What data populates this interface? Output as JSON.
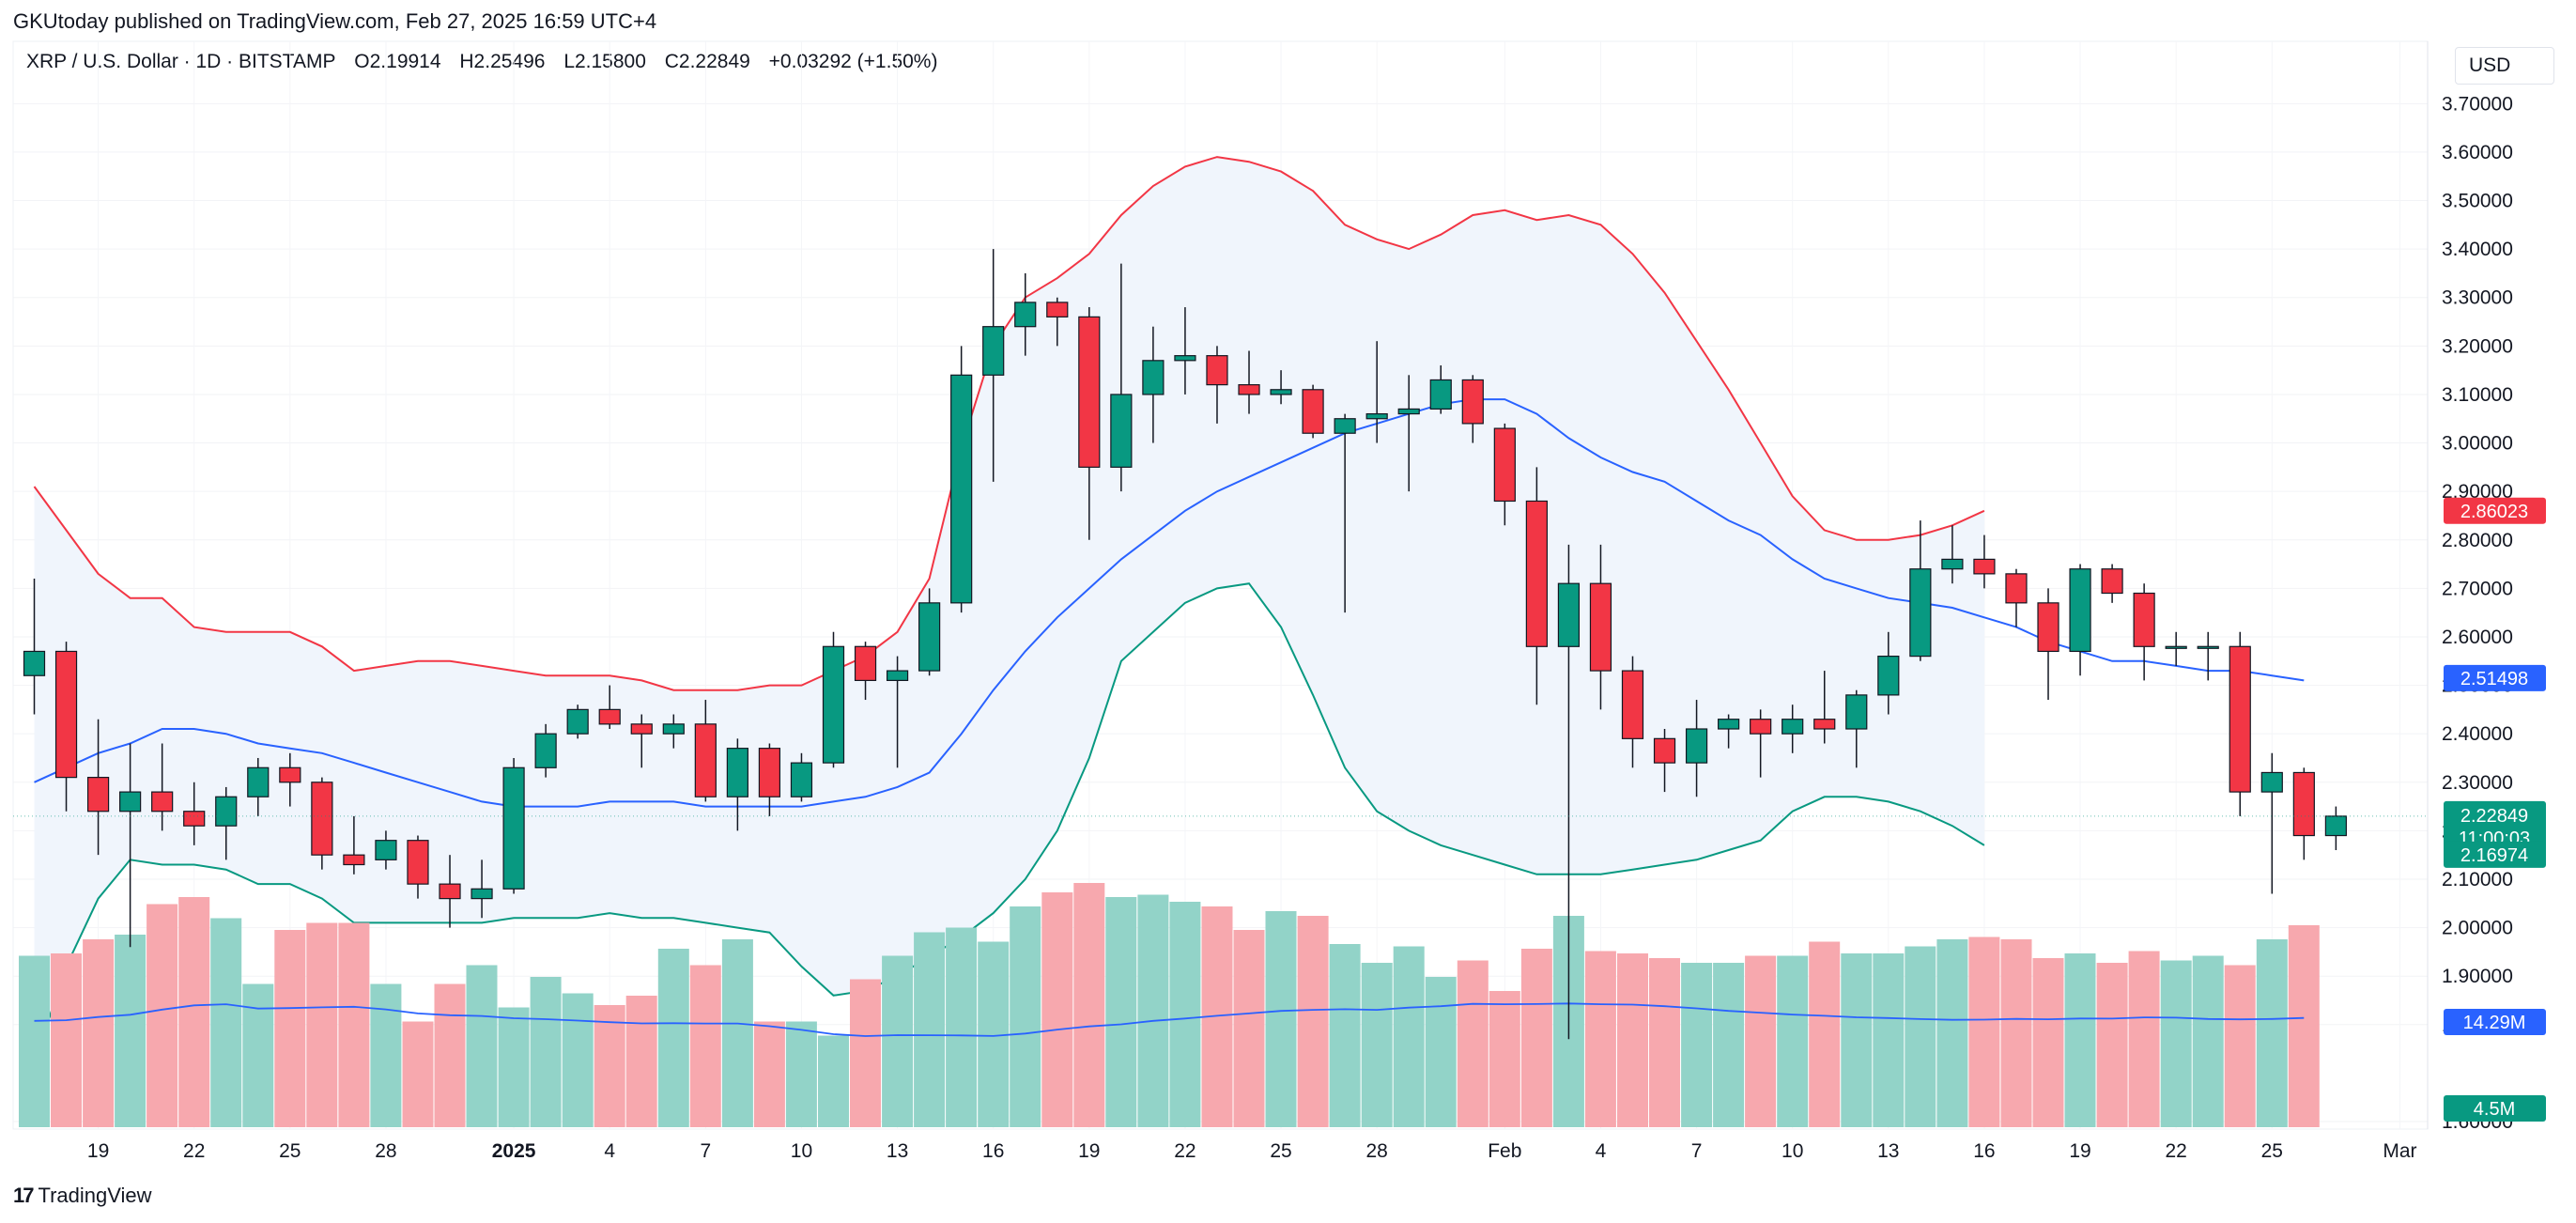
{
  "header": {
    "published": "GKUtoday published on TradingView.com, Feb 27, 2025 16:59 UTC+4",
    "symbol": "XRP / U.S. Dollar · 1D · BITSTAMP",
    "open": "O2.19914",
    "high": "H2.25496",
    "low": "L2.15800",
    "close": "C2.22849",
    "change": "+0.03292 (+1.50%)"
  },
  "currency": "USD",
  "footer": {
    "logo_text": "TradingView",
    "logo_mark": "17"
  },
  "colors": {
    "up": "#089981",
    "down": "#f23645",
    "volume_up": "#92d3c8",
    "volume_down": "#f7a8ae",
    "basis": "#2962ff",
    "upper_band": "#f23645",
    "lower_band": "#089981",
    "band_fill": "#f0f5fc"
  },
  "price_labels": {
    "upper_band": "2.86023",
    "basis": "2.51498",
    "last_price": "2.22849",
    "countdown": "11:00:03",
    "lower_band": "2.16974",
    "volume_ma": "14.29M",
    "volume": "4.5M"
  },
  "chart_data": {
    "type": "candlestick",
    "title": "XRP / U.S. Dollar · 1D · BITSTAMP",
    "ylim": [
      1.6,
      3.72
    ],
    "y_ticks": [
      "3.70000",
      "3.60000",
      "3.50000",
      "3.40000",
      "3.30000",
      "3.20000",
      "3.10000",
      "3.00000",
      "2.90000",
      "2.80000",
      "2.70000",
      "2.60000",
      "2.50000",
      "2.40000",
      "2.30000",
      "2.20000",
      "2.10000",
      "2.00000",
      "1.90000",
      "1.80000",
      "1.60000"
    ],
    "y_tick_values": [
      3.7,
      3.6,
      3.5,
      3.4,
      3.3,
      3.2,
      3.1,
      3.0,
      2.9,
      2.8,
      2.7,
      2.6,
      2.5,
      2.4,
      2.3,
      2.2,
      2.1,
      2.0,
      1.9,
      1.8,
      1.6
    ],
    "x_ticks": [
      {
        "label": "19",
        "index": 2,
        "bold": false
      },
      {
        "label": "22",
        "index": 5,
        "bold": false
      },
      {
        "label": "25",
        "index": 8,
        "bold": false
      },
      {
        "label": "28",
        "index": 11,
        "bold": false
      },
      {
        "label": "2025",
        "index": 15,
        "bold": true
      },
      {
        "label": "4",
        "index": 18,
        "bold": false
      },
      {
        "label": "7",
        "index": 21,
        "bold": false
      },
      {
        "label": "10",
        "index": 24,
        "bold": false
      },
      {
        "label": "13",
        "index": 27,
        "bold": false
      },
      {
        "label": "16",
        "index": 30,
        "bold": false
      },
      {
        "label": "19",
        "index": 33,
        "bold": false
      },
      {
        "label": "22",
        "index": 36,
        "bold": false
      },
      {
        "label": "25",
        "index": 39,
        "bold": false
      },
      {
        "label": "28",
        "index": 42,
        "bold": false
      },
      {
        "label": "Feb",
        "index": 46,
        "bold": false
      },
      {
        "label": "4",
        "index": 49,
        "bold": false
      },
      {
        "label": "7",
        "index": 52,
        "bold": false
      },
      {
        "label": "10",
        "index": 55,
        "bold": false
      },
      {
        "label": "13",
        "index": 58,
        "bold": false
      },
      {
        "label": "16",
        "index": 61,
        "bold": false
      },
      {
        "label": "19",
        "index": 64,
        "bold": false
      },
      {
        "label": "22",
        "index": 67,
        "bold": false
      },
      {
        "label": "25",
        "index": 70,
        "bold": false
      },
      {
        "label": "Mar",
        "index": 74,
        "bold": false
      }
    ],
    "candles": [
      {
        "o": 2.52,
        "h": 2.72,
        "l": 2.44,
        "c": 2.57
      },
      {
        "o": 2.57,
        "h": 2.59,
        "l": 2.24,
        "c": 2.31
      },
      {
        "o": 2.31,
        "h": 2.43,
        "l": 2.15,
        "c": 2.24
      },
      {
        "o": 2.24,
        "h": 2.38,
        "l": 1.96,
        "c": 2.28
      },
      {
        "o": 2.28,
        "h": 2.38,
        "l": 2.2,
        "c": 2.24
      },
      {
        "o": 2.24,
        "h": 2.3,
        "l": 2.17,
        "c": 2.21
      },
      {
        "o": 2.21,
        "h": 2.29,
        "l": 2.14,
        "c": 2.27
      },
      {
        "o": 2.27,
        "h": 2.35,
        "l": 2.23,
        "c": 2.33
      },
      {
        "o": 2.33,
        "h": 2.36,
        "l": 2.25,
        "c": 2.3
      },
      {
        "o": 2.3,
        "h": 2.31,
        "l": 2.12,
        "c": 2.15
      },
      {
        "o": 2.15,
        "h": 2.23,
        "l": 2.11,
        "c": 2.13
      },
      {
        "o": 2.14,
        "h": 2.2,
        "l": 2.12,
        "c": 2.18
      },
      {
        "o": 2.18,
        "h": 2.19,
        "l": 2.06,
        "c": 2.09
      },
      {
        "o": 2.09,
        "h": 2.15,
        "l": 2.0,
        "c": 2.06
      },
      {
        "o": 2.06,
        "h": 2.14,
        "l": 2.02,
        "c": 2.08
      },
      {
        "o": 2.08,
        "h": 2.35,
        "l": 2.07,
        "c": 2.33
      },
      {
        "o": 2.33,
        "h": 2.42,
        "l": 2.31,
        "c": 2.4
      },
      {
        "o": 2.4,
        "h": 2.46,
        "l": 2.39,
        "c": 2.45
      },
      {
        "o": 2.45,
        "h": 2.5,
        "l": 2.41,
        "c": 2.42
      },
      {
        "o": 2.42,
        "h": 2.44,
        "l": 2.33,
        "c": 2.4
      },
      {
        "o": 2.4,
        "h": 2.44,
        "l": 2.37,
        "c": 2.42
      },
      {
        "o": 2.42,
        "h": 2.47,
        "l": 2.26,
        "c": 2.27
      },
      {
        "o": 2.27,
        "h": 2.39,
        "l": 2.2,
        "c": 2.37
      },
      {
        "o": 2.37,
        "h": 2.38,
        "l": 2.23,
        "c": 2.27
      },
      {
        "o": 2.27,
        "h": 2.36,
        "l": 2.26,
        "c": 2.34
      },
      {
        "o": 2.34,
        "h": 2.61,
        "l": 2.33,
        "c": 2.58
      },
      {
        "o": 2.58,
        "h": 2.59,
        "l": 2.47,
        "c": 2.51
      },
      {
        "o": 2.51,
        "h": 2.56,
        "l": 2.33,
        "c": 2.53
      },
      {
        "o": 2.53,
        "h": 2.7,
        "l": 2.52,
        "c": 2.67
      },
      {
        "o": 2.67,
        "h": 3.2,
        "l": 2.65,
        "c": 3.14
      },
      {
        "o": 3.14,
        "h": 3.4,
        "l": 2.92,
        "c": 3.24
      },
      {
        "o": 3.24,
        "h": 3.35,
        "l": 3.18,
        "c": 3.29
      },
      {
        "o": 3.29,
        "h": 3.3,
        "l": 3.2,
        "c": 3.26
      },
      {
        "o": 3.26,
        "h": 3.28,
        "l": 2.8,
        "c": 2.95
      },
      {
        "o": 2.95,
        "h": 3.37,
        "l": 2.9,
        "c": 3.1
      },
      {
        "o": 3.1,
        "h": 3.24,
        "l": 3.0,
        "c": 3.17
      },
      {
        "o": 3.17,
        "h": 3.28,
        "l": 3.1,
        "c": 3.18
      },
      {
        "o": 3.18,
        "h": 3.2,
        "l": 3.04,
        "c": 3.12
      },
      {
        "o": 3.12,
        "h": 3.19,
        "l": 3.06,
        "c": 3.1
      },
      {
        "o": 3.1,
        "h": 3.15,
        "l": 3.08,
        "c": 3.11
      },
      {
        "o": 3.11,
        "h": 3.12,
        "l": 3.01,
        "c": 3.02
      },
      {
        "o": 3.02,
        "h": 3.06,
        "l": 2.65,
        "c": 3.05
      },
      {
        "o": 3.05,
        "h": 3.21,
        "l": 3.0,
        "c": 3.06
      },
      {
        "o": 3.06,
        "h": 3.14,
        "l": 2.9,
        "c": 3.07
      },
      {
        "o": 3.07,
        "h": 3.16,
        "l": 3.06,
        "c": 3.13
      },
      {
        "o": 3.13,
        "h": 3.14,
        "l": 3.0,
        "c": 3.04
      },
      {
        "o": 3.03,
        "h": 3.04,
        "l": 2.83,
        "c": 2.88
      },
      {
        "o": 2.88,
        "h": 2.95,
        "l": 2.46,
        "c": 2.58
      },
      {
        "o": 2.58,
        "h": 2.79,
        "l": 1.77,
        "c": 2.71
      },
      {
        "o": 2.71,
        "h": 2.79,
        "l": 2.45,
        "c": 2.53
      },
      {
        "o": 2.53,
        "h": 2.56,
        "l": 2.33,
        "c": 2.39
      },
      {
        "o": 2.39,
        "h": 2.41,
        "l": 2.28,
        "c": 2.34
      },
      {
        "o": 2.34,
        "h": 2.47,
        "l": 2.27,
        "c": 2.41
      },
      {
        "o": 2.41,
        "h": 2.44,
        "l": 2.37,
        "c": 2.43
      },
      {
        "o": 2.43,
        "h": 2.45,
        "l": 2.31,
        "c": 2.4
      },
      {
        "o": 2.4,
        "h": 2.46,
        "l": 2.36,
        "c": 2.43
      },
      {
        "o": 2.43,
        "h": 2.53,
        "l": 2.38,
        "c": 2.41
      },
      {
        "o": 2.41,
        "h": 2.49,
        "l": 2.33,
        "c": 2.48
      },
      {
        "o": 2.48,
        "h": 2.61,
        "l": 2.44,
        "c": 2.56
      },
      {
        "o": 2.56,
        "h": 2.84,
        "l": 2.55,
        "c": 2.74
      },
      {
        "o": 2.74,
        "h": 2.83,
        "l": 2.71,
        "c": 2.76
      },
      {
        "o": 2.76,
        "h": 2.81,
        "l": 2.7,
        "c": 2.73
      },
      {
        "o": 2.73,
        "h": 2.74,
        "l": 2.62,
        "c": 2.67
      },
      {
        "o": 2.67,
        "h": 2.7,
        "l": 2.47,
        "c": 2.57
      },
      {
        "o": 2.57,
        "h": 2.75,
        "l": 2.52,
        "c": 2.74
      },
      {
        "o": 2.74,
        "h": 2.75,
        "l": 2.67,
        "c": 2.69
      },
      {
        "o": 2.69,
        "h": 2.71,
        "l": 2.51,
        "c": 2.58
      },
      {
        "o": 2.58,
        "h": 2.61,
        "l": 2.54,
        "c": 2.58
      },
      {
        "o": 2.58,
        "h": 2.61,
        "l": 2.51,
        "c": 2.58
      },
      {
        "o": 2.58,
        "h": 2.61,
        "l": 2.23,
        "c": 2.28
      },
      {
        "o": 2.28,
        "h": 2.36,
        "l": 2.07,
        "c": 2.32
      },
      {
        "o": 2.32,
        "h": 2.33,
        "l": 2.14,
        "c": 2.19
      },
      {
        "o": 2.19,
        "h": 2.25,
        "l": 2.16,
        "c": 2.23
      }
    ],
    "bollinger": {
      "basis": [
        2.3,
        2.33,
        2.36,
        2.38,
        2.41,
        2.41,
        2.4,
        2.38,
        2.37,
        2.36,
        2.34,
        2.32,
        2.3,
        2.28,
        2.26,
        2.25,
        2.25,
        2.25,
        2.26,
        2.26,
        2.26,
        2.25,
        2.25,
        2.25,
        2.25,
        2.26,
        2.27,
        2.29,
        2.32,
        2.4,
        2.49,
        2.57,
        2.64,
        2.7,
        2.76,
        2.81,
        2.86,
        2.9,
        2.93,
        2.96,
        2.99,
        3.02,
        3.04,
        3.06,
        3.08,
        3.09,
        3.09,
        3.06,
        3.01,
        2.97,
        2.94,
        2.92,
        2.88,
        2.84,
        2.81,
        2.76,
        2.72,
        2.7,
        2.68,
        2.67,
        2.66,
        2.64,
        2.62,
        2.59,
        2.57,
        2.55,
        2.55,
        2.54,
        2.53,
        2.53,
        2.52,
        2.51
      ],
      "upper": [
        2.91,
        2.82,
        2.73,
        2.68,
        2.68,
        2.62,
        2.61,
        2.61,
        2.61,
        2.58,
        2.53,
        2.54,
        2.55,
        2.55,
        2.54,
        2.53,
        2.52,
        2.52,
        2.52,
        2.51,
        2.49,
        2.49,
        2.49,
        2.5,
        2.5,
        2.53,
        2.56,
        2.61,
        2.72,
        2.99,
        3.2,
        3.3,
        3.34,
        3.39,
        3.47,
        3.53,
        3.57,
        3.59,
        3.58,
        3.56,
        3.52,
        3.45,
        3.42,
        3.4,
        3.43,
        3.47,
        3.48,
        3.46,
        3.47,
        3.45,
        3.39,
        3.31,
        3.21,
        3.11,
        3.0,
        2.89,
        2.82,
        2.8,
        2.8,
        2.81,
        2.83,
        2.86
      ],
      "lower": [
        1.72,
        1.92,
        2.06,
        2.14,
        2.13,
        2.13,
        2.12,
        2.09,
        2.09,
        2.06,
        2.01,
        2.01,
        2.01,
        2.01,
        2.01,
        2.02,
        2.02,
        2.02,
        2.03,
        2.02,
        2.02,
        2.01,
        2.0,
        1.99,
        1.92,
        1.86,
        1.87,
        1.9,
        1.94,
        1.98,
        2.03,
        2.1,
        2.2,
        2.35,
        2.55,
        2.61,
        2.67,
        2.7,
        2.71,
        2.62,
        2.48,
        2.33,
        2.24,
        2.2,
        2.17,
        2.15,
        2.13,
        2.11,
        2.11,
        2.11,
        2.12,
        2.13,
        2.14,
        2.16,
        2.18,
        2.24,
        2.27,
        2.27,
        2.26,
        2.24,
        2.21,
        2.17
      ]
    },
    "volume": {
      "values": [
        0.73,
        0.74,
        0.8,
        0.82,
        0.95,
        0.98,
        0.89,
        0.61,
        0.84,
        0.87,
        0.87,
        0.61,
        0.45,
        0.61,
        0.69,
        0.51,
        0.64,
        0.57,
        0.52,
        0.56,
        0.76,
        0.69,
        0.8,
        0.45,
        0.45,
        0.39,
        0.63,
        0.73,
        0.83,
        0.85,
        0.79,
        0.94,
        1.0,
        1.04,
        0.98,
        0.99,
        0.96,
        0.94,
        0.84,
        0.92,
        0.9,
        0.78,
        0.7,
        0.77,
        0.64,
        0.71,
        0.58,
        0.76,
        0.9,
        0.75,
        0.74,
        0.72,
        0.7,
        0.7,
        0.73,
        0.73,
        0.79,
        0.74,
        0.74,
        0.77,
        0.8,
        0.81,
        0.8,
        0.72,
        0.74,
        0.7,
        0.75,
        0.71,
        0.73,
        0.69,
        0.8,
        0.86
      ],
      "ylim": [
        0,
        1
      ]
    }
  }
}
